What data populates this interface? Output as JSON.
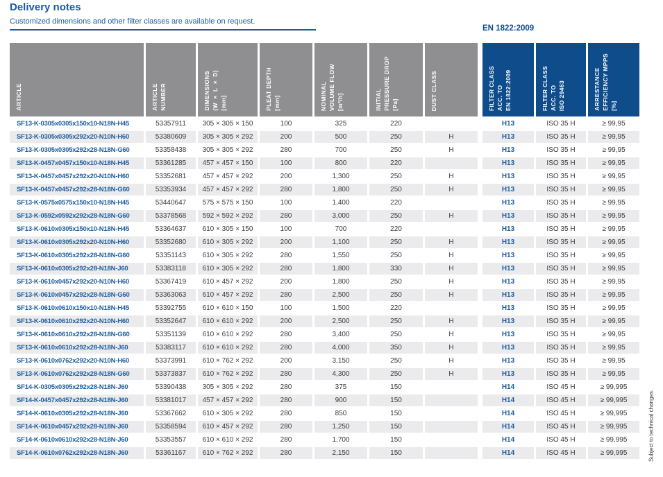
{
  "page": {
    "title": "Delivery notes",
    "subtitle": "Customized dimensions and other filter classes are available on request.",
    "standard_label": "EN 1822:2009",
    "footnote": "Subject to technical changes."
  },
  "colors": {
    "brand_blue": "#1A5BA4",
    "header_dark_blue": "#0E4C8C",
    "header_gray": "#8F8F91",
    "row_alt_gray": "#EBEBED",
    "text_dark": "#3A3A3C",
    "article_blue": "#1D5C9E"
  },
  "table": {
    "columns": [
      {
        "key": "article",
        "lines": [
          "ARTICLE"
        ],
        "group": "gray"
      },
      {
        "key": "article-number",
        "lines": [
          "ARTICLE",
          "NUMBER"
        ],
        "group": "gray"
      },
      {
        "key": "dimensions",
        "lines": [
          "DIMENSIONS",
          "(W × L × D)",
          "[mm]"
        ],
        "group": "gray"
      },
      {
        "key": "pleat-depth",
        "lines": [
          "PLEAT DEPTH",
          "[mm]"
        ],
        "group": "gray"
      },
      {
        "key": "nominal-volume-flow",
        "lines": [
          "NOMINAL",
          "VOLUME FLOW",
          "[m³/h]"
        ],
        "group": "gray"
      },
      {
        "key": "initial-pressure-drop",
        "lines": [
          "INITIAL",
          "PRESSURE DROP",
          "[Pa]"
        ],
        "group": "gray"
      },
      {
        "key": "dust-class",
        "lines": [
          "DUST CLASS"
        ],
        "group": "gray",
        "gap_after": true
      },
      {
        "key": "filter-class-en",
        "lines": [
          "FILTER CLASS",
          "ACC. TO",
          "EN 1822:2009"
        ],
        "group": "blue"
      },
      {
        "key": "filter-class-iso",
        "lines": [
          "FILTER CLASS",
          "ACC. TO",
          "ISO 29463"
        ],
        "group": "blue"
      },
      {
        "key": "arrestance-efficiency",
        "lines": [
          "ARRESTANCE",
          "EFFICIENCY MPPS",
          "[%]"
        ],
        "group": "blue"
      }
    ],
    "rows": [
      [
        "SF13-K-0305x0305x150x10-N18N-H45",
        "53357911",
        "305 × 305 × 150",
        "100",
        "325",
        "220",
        "",
        "H13",
        "ISO 35 H",
        "≥ 99,95"
      ],
      [
        "SF13-K-0305x0305x292x20-N10N-H60",
        "53380609",
        "305 × 305 × 292",
        "200",
        "500",
        "250",
        "H",
        "H13",
        "ISO 35 H",
        "≥ 99,95"
      ],
      [
        "SF13-K-0305x0305x292x28-N18N-G60",
        "53358438",
        "305 × 305 × 292",
        "280",
        "700",
        "250",
        "H",
        "H13",
        "ISO 35 H",
        "≥ 99,95"
      ],
      [
        "SF13-K-0457x0457x150x10-N18N-H45",
        "53361285",
        "457 × 457 × 150",
        "100",
        "800",
        "220",
        "",
        "H13",
        "ISO 35 H",
        "≥ 99,95"
      ],
      [
        "SF13-K-0457x0457x292x20-N10N-H60",
        "53352681",
        "457 × 457 × 292",
        "200",
        "1,300",
        "250",
        "H",
        "H13",
        "ISO 35 H",
        "≥ 99,95"
      ],
      [
        "SF13-K-0457x0457x292x28-N18N-G60",
        "53353934",
        "457 × 457 × 292",
        "280",
        "1,800",
        "250",
        "H",
        "H13",
        "ISO 35 H",
        "≥ 99,95"
      ],
      [
        "SF13-K-0575x0575x150x10-N18N-H45",
        "53440647",
        "575 × 575 × 150",
        "100",
        "1,400",
        "220",
        "",
        "H13",
        "ISO 35 H",
        "≥ 99,95"
      ],
      [
        "SF13-K-0592x0592x292x28-N18N-G60",
        "53378568",
        "592 × 592 × 292",
        "280",
        "3,000",
        "250",
        "H",
        "H13",
        "ISO 35 H",
        "≥ 99,95"
      ],
      [
        "SF13-K-0610x0305x150x10-N18N-H45",
        "53364637",
        "610 × 305 × 150",
        "100",
        "700",
        "220",
        "",
        "H13",
        "ISO 35 H",
        "≥ 99,95"
      ],
      [
        "SF13-K-0610x0305x292x20-N10N-H60",
        "53352680",
        "610 × 305 × 292",
        "200",
        "1,100",
        "250",
        "H",
        "H13",
        "ISO 35 H",
        "≥ 99,95"
      ],
      [
        "SF13-K-0610x0305x292x28-N18N-G60",
        "53351143",
        "610 × 305 × 292",
        "280",
        "1,550",
        "250",
        "H",
        "H13",
        "ISO 35 H",
        "≥ 99,95"
      ],
      [
        "SF13-K-0610x0305x292x28-N18N-J60",
        "53383118",
        "610 × 305 × 292",
        "280",
        "1,800",
        "330",
        "H",
        "H13",
        "ISO 35 H",
        "≥ 99,95"
      ],
      [
        "SF13-K-0610x0457x292x20-N10N-H60",
        "53367419",
        "610 × 457 × 292",
        "200",
        "1,800",
        "250",
        "H",
        "H13",
        "ISO 35 H",
        "≥ 99,95"
      ],
      [
        "SF13-K-0610x0457x292x28-N18N-G60",
        "53363063",
        "610 × 457 × 292",
        "280",
        "2,500",
        "250",
        "H",
        "H13",
        "ISO 35 H",
        "≥ 99,95"
      ],
      [
        "SF13-K-0610x0610x150x10-N18N-H45",
        "53392755",
        "610 × 610 × 150",
        "100",
        "1,500",
        "220",
        "",
        "H13",
        "ISO 35 H",
        "≥ 99,95"
      ],
      [
        "SF13-K-0610x0610x292x20-N10N-H60",
        "53352647",
        "610 × 610 × 292",
        "200",
        "2,500",
        "250",
        "H",
        "H13",
        "ISO 35 H",
        "≥ 99,95"
      ],
      [
        "SF13-K-0610x0610x292x28-N18N-G60",
        "53351139",
        "610 × 610 × 292",
        "280",
        "3,400",
        "250",
        "H",
        "H13",
        "ISO 35 H",
        "≥ 99,95"
      ],
      [
        "SF13-K-0610x0610x292x28-N18N-J60",
        "53383117",
        "610 × 610 × 292",
        "280",
        "4,000",
        "350",
        "H",
        "H13",
        "ISO 35 H",
        "≥ 99,95"
      ],
      [
        "SF13-K-0610x0762x292x20-N10N-H60",
        "53373991",
        "610 × 762 × 292",
        "200",
        "3,150",
        "250",
        "H",
        "H13",
        "ISO 35 H",
        "≥ 99,95"
      ],
      [
        "SF13-K-0610x0762x292x28-N18N-G60",
        "53373837",
        "610 × 762 × 292",
        "280",
        "4,300",
        "250",
        "H",
        "H13",
        "ISO 35 H",
        "≥ 99,95"
      ],
      [
        "SF14-K-0305x0305x292x28-N18N-J60",
        "53390438",
        "305 × 305 × 292",
        "280",
        "375",
        "150",
        "",
        "H14",
        "ISO 45 H",
        "≥ 99,995"
      ],
      [
        "SF14-K-0457x0457x292x28-N18N-J60",
        "53381017",
        "457 × 457 × 292",
        "280",
        "900",
        "150",
        "",
        "H14",
        "ISO 45 H",
        "≥ 99,995"
      ],
      [
        "SF14-K-0610x0305x292x28-N18N-J60",
        "53367662",
        "610 × 305 × 292",
        "280",
        "850",
        "150",
        "",
        "H14",
        "ISO 45 H",
        "≥ 99,995"
      ],
      [
        "SF14-K-0610x0457x292x28-N18N-J60",
        "53358594",
        "610 × 457 × 292",
        "280",
        "1,250",
        "150",
        "",
        "H14",
        "ISO 45 H",
        "≥ 99,995"
      ],
      [
        "SF14-K-0610x0610x292x28-N18N-J60",
        "53353557",
        "610 × 610 × 292",
        "280",
        "1,700",
        "150",
        "",
        "H14",
        "ISO 45 H",
        "≥ 99,995"
      ],
      [
        "SF14-K-0610x0762x292x28-N18N-J60",
        "53361167",
        "610 × 762 × 292",
        "280",
        "2,150",
        "150",
        "",
        "H14",
        "ISO 45 H",
        "≥ 99,995"
      ]
    ]
  }
}
